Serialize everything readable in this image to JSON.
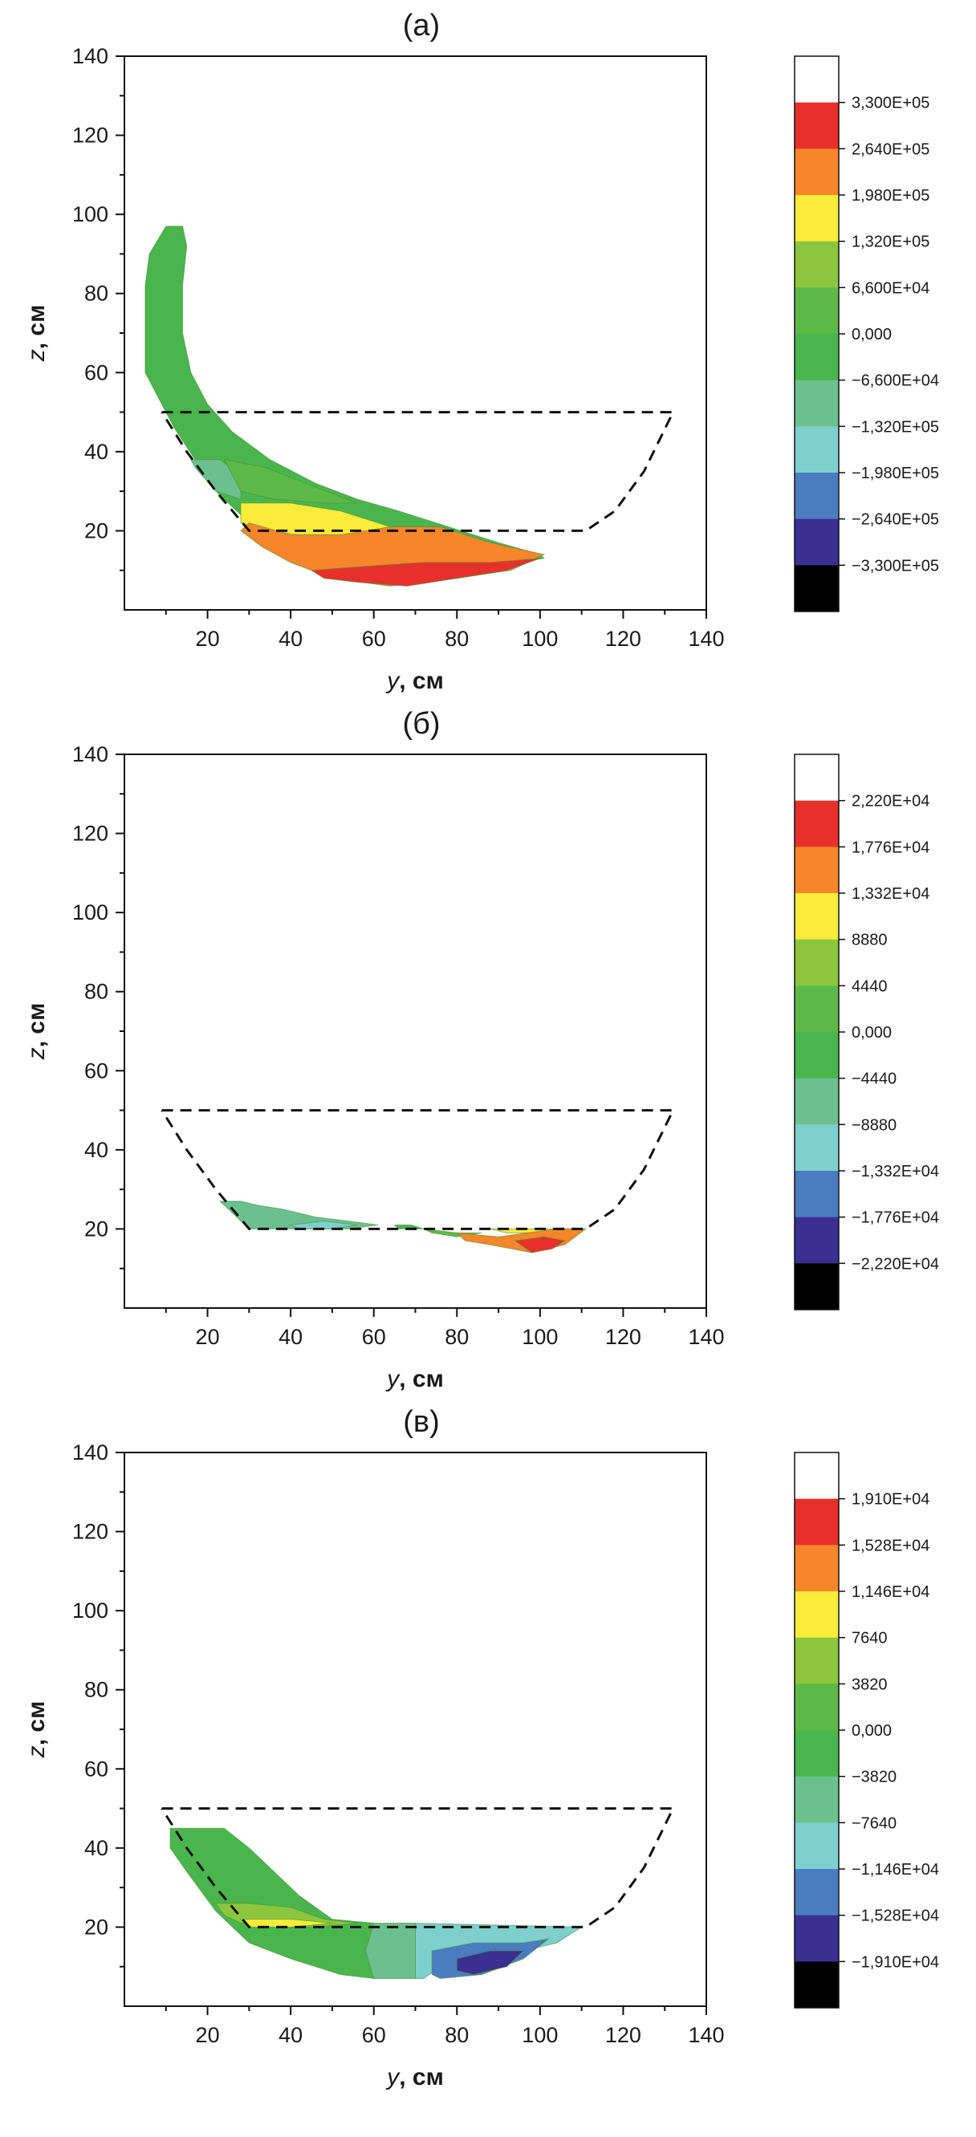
{
  "figure": {
    "panels": [
      {
        "title": "(а)",
        "xlabel_var": "y",
        "xlabel_unit": ", см",
        "ylabel_var": "z",
        "ylabel_unit": ", см",
        "xticks": [
          "20",
          "40",
          "60",
          "80",
          "100",
          "120",
          "140"
        ],
        "yticks": [
          "20",
          "40",
          "60",
          "80",
          "100",
          "120",
          "140"
        ],
        "legend_labels": [
          "3,300E+05",
          "2,640E+05",
          "1,980E+05",
          "1,320E+05",
          "6,600E+04",
          "0,000",
          "−6,600E+04",
          "−1,320E+05",
          "−1,980E+05",
          "−2,640E+05",
          "−3,300E+05"
        ]
      },
      {
        "title": "(б)",
        "xlabel_var": "y",
        "xlabel_unit": ", см",
        "ylabel_var": "z",
        "ylabel_unit": ", см",
        "xticks": [
          "20",
          "40",
          "60",
          "80",
          "100",
          "120",
          "140"
        ],
        "yticks": [
          "20",
          "40",
          "60",
          "80",
          "100",
          "120",
          "140"
        ],
        "legend_labels": [
          "2,220E+04",
          "1,776E+04",
          "1,332E+04",
          "8880",
          "4440",
          "0,000",
          "−4440",
          "−8880",
          "−1,332E+04",
          "−1,776E+04",
          "−2,220E+04"
        ]
      },
      {
        "title": "(в)",
        "xlabel_var": "y",
        "xlabel_unit": ", см",
        "ylabel_var": "z",
        "ylabel_unit": ", см",
        "xticks": [
          "20",
          "40",
          "60",
          "80",
          "100",
          "120",
          "140"
        ],
        "yticks": [
          "20",
          "40",
          "60",
          "80",
          "100",
          "120",
          "140"
        ],
        "legend_labels": [
          "1,910E+04",
          "1,528E+04",
          "1,146E+04",
          "7640",
          "3820",
          "0,000",
          "−3820",
          "−7640",
          "−1,146E+04",
          "−1,528E+04",
          "−1,910E+04"
        ]
      }
    ]
  },
  "chart_data": [
    {
      "type": "heatmap",
      "title": "(а)",
      "xlabel": "y, см",
      "ylabel": "z, см",
      "xlim": [
        0,
        140
      ],
      "ylim": [
        0,
        140
      ],
      "levels": [
        330000,
        264000,
        198000,
        132000,
        66000,
        0,
        -66000,
        -132000,
        -198000,
        -264000,
        -330000
      ],
      "level_colors": [
        "#ffffff",
        "#e8302b",
        "#f7862a",
        "#fbec3b",
        "#8cc63f",
        "#5db947",
        "#4ab54d",
        "#6cc08f",
        "#7fcfcc",
        "#4a7cc0",
        "#3b2f91",
        "#000000"
      ],
      "dashed_outline": [
        [
          9,
          50
        ],
        [
          132,
          50
        ],
        [
          125,
          35
        ],
        [
          118,
          25
        ],
        [
          111,
          20
        ],
        [
          30,
          20
        ],
        [
          22,
          30
        ],
        [
          15,
          40
        ],
        [
          9,
          50
        ]
      ],
      "regions": [
        {
          "level_index": 6,
          "polygon": [
            [
              5,
              82
            ],
            [
              6,
              90
            ],
            [
              10,
              97
            ],
            [
              14,
              97
            ],
            [
              15,
              92
            ],
            [
              14,
              82
            ],
            [
              14,
              70
            ],
            [
              16,
              60
            ],
            [
              20,
              52
            ],
            [
              26,
              45
            ],
            [
              35,
              38
            ],
            [
              46,
              32
            ],
            [
              56,
              28
            ],
            [
              66,
              25
            ],
            [
              78,
              21
            ],
            [
              90,
              17
            ],
            [
              100,
              14
            ],
            [
              101,
              13
            ],
            [
              92,
              12
            ],
            [
              82,
              16
            ],
            [
              68,
              18
            ],
            [
              52,
              20
            ],
            [
              38,
              22
            ],
            [
              28,
              24
            ],
            [
              22,
              30
            ],
            [
              17,
              38
            ],
            [
              12,
              46
            ],
            [
              8,
              54
            ],
            [
              5,
              60
            ]
          ]
        },
        {
          "level_index": 7,
          "polygon": [
            [
              16,
              38
            ],
            [
              23,
              38
            ],
            [
              28,
              34
            ],
            [
              28,
              28
            ],
            [
              22,
              30
            ],
            [
              17,
              36
            ]
          ]
        },
        {
          "level_index": 5,
          "polygon": [
            [
              24,
              38
            ],
            [
              34,
              36
            ],
            [
              46,
              31
            ],
            [
              56,
              27
            ],
            [
              48,
              27
            ],
            [
              36,
              28
            ],
            [
              28,
              30
            ]
          ]
        },
        {
          "level_index": 3,
          "polygon": [
            [
              28,
              27
            ],
            [
              40,
              27
            ],
            [
              52,
              25
            ],
            [
              64,
              21
            ],
            [
              56,
              19
            ],
            [
              42,
              19
            ],
            [
              34,
              20
            ],
            [
              28,
              22
            ]
          ]
        },
        {
          "level_index": 2,
          "polygon": [
            [
              30,
              22
            ],
            [
              40,
              19
            ],
            [
              52,
              19
            ],
            [
              64,
              21
            ],
            [
              76,
              21
            ],
            [
              88,
              17
            ],
            [
              101,
              14
            ],
            [
              93,
              10
            ],
            [
              80,
              8
            ],
            [
              64,
              6
            ],
            [
              50,
              8
            ],
            [
              40,
              12
            ],
            [
              33,
              16
            ],
            [
              28,
              20
            ]
          ]
        },
        {
          "level_index": 1,
          "polygon": [
            [
              45,
              10
            ],
            [
              58,
              11
            ],
            [
              72,
              12
            ],
            [
              88,
              12
            ],
            [
              100,
              13
            ],
            [
              92,
              10
            ],
            [
              80,
              8
            ],
            [
              68,
              6
            ],
            [
              56,
              7
            ],
            [
              48,
              8
            ]
          ]
        }
      ]
    },
    {
      "type": "heatmap",
      "title": "(б)",
      "xlabel": "y, см",
      "ylabel": "z, см",
      "xlim": [
        0,
        140
      ],
      "ylim": [
        0,
        140
      ],
      "levels": [
        22200,
        17760,
        13320,
        8880,
        4440,
        0,
        -4440,
        -8880,
        -13320,
        -17760,
        -22200
      ],
      "level_colors": [
        "#ffffff",
        "#e8302b",
        "#f7862a",
        "#fbec3b",
        "#8cc63f",
        "#5db947",
        "#4ab54d",
        "#6cc08f",
        "#7fcfcc",
        "#4a7cc0",
        "#3b2f91",
        "#000000"
      ],
      "dashed_outline": [
        [
          9,
          50
        ],
        [
          132,
          50
        ],
        [
          125,
          35
        ],
        [
          118,
          25
        ],
        [
          111,
          20
        ],
        [
          30,
          20
        ],
        [
          22,
          30
        ],
        [
          15,
          40
        ],
        [
          9,
          50
        ]
      ],
      "regions": [
        {
          "level_index": 7,
          "polygon": [
            [
              23,
              27
            ],
            [
              28,
              27
            ],
            [
              32,
              26
            ],
            [
              38,
              25
            ],
            [
              46,
              23
            ],
            [
              54,
              22
            ],
            [
              61,
              21
            ],
            [
              54,
              20
            ],
            [
              40,
              20
            ],
            [
              30,
              20
            ]
          ]
        },
        {
          "level_index": 8,
          "polygon": [
            [
              40,
              21
            ],
            [
              48,
              22
            ],
            [
              56,
              21
            ],
            [
              50,
              20
            ],
            [
              42,
              20
            ]
          ]
        },
        {
          "level_index": 6,
          "polygon": [
            [
              65,
              21
            ],
            [
              69,
              21
            ],
            [
              72,
              20
            ],
            [
              66,
              20
            ]
          ]
        },
        {
          "level_index": 5,
          "polygon": [
            [
              72,
              20
            ],
            [
              80,
              19
            ],
            [
              86,
              19
            ],
            [
              80,
              18
            ],
            [
              74,
              19
            ]
          ]
        },
        {
          "level_index": 3,
          "polygon": [
            [
              88,
              20
            ],
            [
              104,
              20
            ],
            [
              110,
              20
            ],
            [
              102,
              19
            ],
            [
              92,
              19
            ]
          ]
        },
        {
          "level_index": 2,
          "polygon": [
            [
              80,
              19
            ],
            [
              90,
              18
            ],
            [
              104,
              20
            ],
            [
              111,
              20
            ],
            [
              106,
              16
            ],
            [
              98,
              14
            ],
            [
              88,
              16
            ],
            [
              82,
              17
            ]
          ]
        },
        {
          "level_index": 1,
          "polygon": [
            [
              94,
              17
            ],
            [
              101,
              18
            ],
            [
              106,
              17
            ],
            [
              103,
              15
            ],
            [
              98,
              14
            ]
          ]
        }
      ]
    },
    {
      "type": "heatmap",
      "title": "(в)",
      "xlabel": "y, см",
      "ylabel": "z, см",
      "xlim": [
        0,
        140
      ],
      "ylim": [
        0,
        140
      ],
      "levels": [
        19100,
        15280,
        11460,
        7640,
        3820,
        0,
        -3820,
        -7640,
        -11460,
        -15280,
        -19100
      ],
      "level_colors": [
        "#ffffff",
        "#e8302b",
        "#f7862a",
        "#fbec3b",
        "#8cc63f",
        "#5db947",
        "#4ab54d",
        "#6cc08f",
        "#7fcfcc",
        "#4a7cc0",
        "#3b2f91",
        "#000000"
      ],
      "dashed_outline": [
        [
          9,
          50
        ],
        [
          132,
          50
        ],
        [
          125,
          35
        ],
        [
          118,
          25
        ],
        [
          111,
          20
        ],
        [
          30,
          20
        ],
        [
          22,
          30
        ],
        [
          15,
          40
        ],
        [
          9,
          50
        ]
      ],
      "regions": [
        {
          "level_index": 6,
          "polygon": [
            [
              11,
              45
            ],
            [
              24,
              45
            ],
            [
              30,
              40
            ],
            [
              36,
              34
            ],
            [
              42,
              28
            ],
            [
              50,
              22
            ],
            [
              60,
              21
            ],
            [
              70,
              20
            ],
            [
              70,
              8
            ],
            [
              60,
              7
            ],
            [
              52,
              8
            ],
            [
              40,
              12
            ],
            [
              30,
              16
            ],
            [
              22,
              24
            ],
            [
              15,
              34
            ],
            [
              11,
              40
            ]
          ]
        },
        {
          "level_index": 4,
          "polygon": [
            [
              22,
              26
            ],
            [
              30,
              26
            ],
            [
              40,
              25
            ],
            [
              48,
              22
            ],
            [
              56,
              21
            ],
            [
              46,
              20
            ],
            [
              36,
              20
            ],
            [
              28,
              21
            ],
            [
              24,
              23
            ]
          ]
        },
        {
          "level_index": 3,
          "polygon": [
            [
              28,
              22
            ],
            [
              40,
              22
            ],
            [
              50,
              21
            ],
            [
              40,
              20
            ],
            [
              30,
              20
            ]
          ]
        },
        {
          "level_index": 7,
          "polygon": [
            [
              60,
              21
            ],
            [
              70,
              21
            ],
            [
              70,
              7
            ],
            [
              60,
              7
            ],
            [
              58,
              14
            ]
          ]
        },
        {
          "level_index": 8,
          "polygon": [
            [
              70,
              21
            ],
            [
              110,
              20
            ],
            [
              104,
              16
            ],
            [
              96,
              14
            ],
            [
              84,
              12
            ],
            [
              76,
              10
            ],
            [
              72,
              7
            ],
            [
              70,
              7
            ]
          ]
        },
        {
          "level_index": 9,
          "polygon": [
            [
              74,
              14
            ],
            [
              84,
              16
            ],
            [
              96,
              16
            ],
            [
              102,
              17
            ],
            [
              96,
              12
            ],
            [
              86,
              8
            ],
            [
              76,
              7
            ],
            [
              74,
              8
            ]
          ]
        },
        {
          "level_index": 10,
          "polygon": [
            [
              80,
              12
            ],
            [
              88,
              14
            ],
            [
              96,
              14
            ],
            [
              92,
              10
            ],
            [
              84,
              8
            ],
            [
              80,
              9
            ]
          ]
        }
      ]
    }
  ]
}
